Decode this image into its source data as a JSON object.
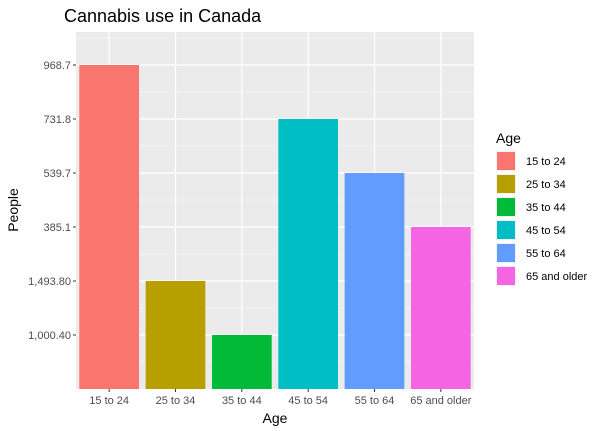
{
  "chart_data": {
    "type": "bar",
    "title": "Cannabis use in Canada",
    "xlabel": "Age",
    "ylabel": "People",
    "categories": [
      "15 to 24",
      "25 to 34",
      "35 to 44",
      "45 to 54",
      "55 to 64",
      "65 and older"
    ],
    "y_tick_labels": [
      "1,000.40",
      "1,493.80",
      "385.1",
      "539.7",
      "731.8",
      "968.7"
    ],
    "values": [
      "968.7",
      "1,493.80",
      "1,000.40",
      "731.8",
      "539.7",
      "385.1"
    ],
    "legend": {
      "title": "Age",
      "position": "right",
      "items": [
        "15 to 24",
        "25 to 34",
        "35 to 44",
        "45 to 54",
        "55 to 64",
        "65 and older"
      ]
    },
    "colors": [
      "#F8766D",
      "#B79F00",
      "#00BA38",
      "#00BFC4",
      "#619CFF",
      "#F564E3"
    ],
    "panel_background": "#EBEBEB",
    "grid": true
  }
}
